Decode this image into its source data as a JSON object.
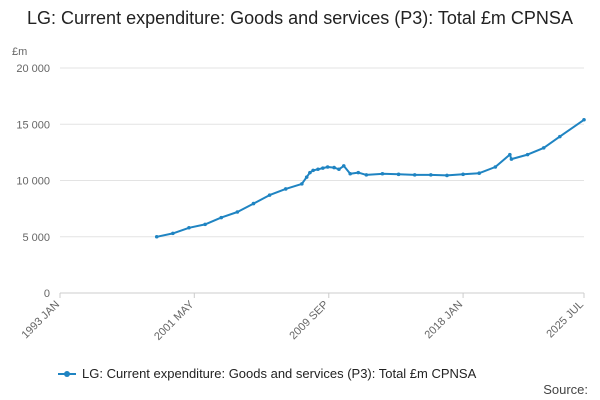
{
  "chart_data": {
    "type": "line",
    "title": "LG: Current expenditure: Goods and services (P3): Total £m CPNSA",
    "ylabel": "£m",
    "xlabel": "",
    "ylim": [
      0,
      20000
    ],
    "xlim": [
      1993.0,
      2025.5
    ],
    "y_ticks": [
      0,
      5000,
      10000,
      15000,
      20000
    ],
    "y_tick_labels": [
      "0",
      "5 000",
      "10 000",
      "15 000",
      "20 000"
    ],
    "x_ticks": [
      1993.0,
      2001.33,
      2009.67,
      2018.0,
      2025.5
    ],
    "x_tick_labels": [
      "1993 JAN",
      "2001 MAY",
      "2009 SEP",
      "2018 JAN",
      "2025 JUL"
    ],
    "grid": true,
    "legend_position": "bottom",
    "series": [
      {
        "name": "LG: Current expenditure: Goods and services (P3): Total £m CPNSA",
        "color": "#1f84c2",
        "x": [
          1999.0,
          2000.0,
          2001.0,
          2002.0,
          2003.0,
          2004.0,
          2005.0,
          2006.0,
          2007.0,
          2008.0,
          2008.3,
          2008.5,
          2008.7,
          2009.0,
          2009.3,
          2009.6,
          2010.0,
          2010.3,
          2010.6,
          2011.0,
          2011.5,
          2012.0,
          2013.0,
          2014.0,
          2015.0,
          2016.0,
          2017.0,
          2018.0,
          2019.0,
          2020.0,
          2020.9,
          2021.0,
          2022.0,
          2023.0,
          2024.0,
          2025.5
        ],
        "values": [
          5000,
          5300,
          5800,
          6100,
          6700,
          7200,
          7950,
          8700,
          9250,
          9700,
          10300,
          10700,
          10900,
          11000,
          11100,
          11200,
          11150,
          11000,
          11300,
          10600,
          10700,
          10500,
          10600,
          10550,
          10500,
          10500,
          10450,
          10550,
          10650,
          11200,
          12300,
          11900,
          12300,
          12900,
          13900,
          15400
        ]
      }
    ]
  },
  "legend": {
    "label": "LG: Current expenditure: Goods and services (P3): Total £m CPNSA"
  },
  "source": {
    "label": "Source:"
  }
}
